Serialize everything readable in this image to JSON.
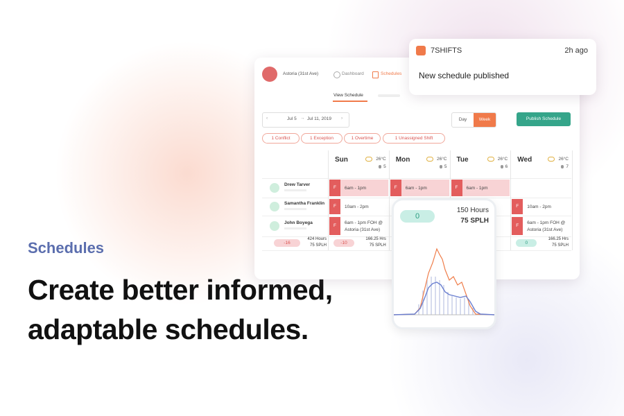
{
  "hero": {
    "eyebrow": "Schedules",
    "headline": "Create better informed, adaptable schedules."
  },
  "notification": {
    "brand": "7SHIFTS",
    "time": "2h ago",
    "message": "New schedule published"
  },
  "app": {
    "location": "Astoria (31st Ave)",
    "nav": [
      "Dashboard",
      "Schedules"
    ],
    "tab": "View Schedule",
    "date_start": "Jul 5",
    "date_end": "Jul 11, 2019",
    "view_toggle": [
      "Day",
      "Week"
    ],
    "publish": "Publish Schedule",
    "alerts": [
      "1 Conflict",
      "1 Exception",
      "1 Overtime",
      "1 Unassigned Shift"
    ],
    "days": [
      {
        "name": "Sun",
        "temp": "26°C",
        "staff": 5
      },
      {
        "name": "Mon",
        "temp": "26°C",
        "staff": 5
      },
      {
        "name": "Tue",
        "temp": "26°C",
        "staff": 6
      },
      {
        "name": "Wed",
        "temp": "26°C",
        "staff": 7
      }
    ],
    "employees": [
      {
        "name": "Drew Tarver",
        "shifts": [
          {
            "badge": "F",
            "time": "6am - 1pm"
          },
          {
            "badge": "F",
            "time": "6am - 1pm"
          },
          {
            "badge": "F",
            "time": "6am - 1pm"
          },
          null
        ]
      },
      {
        "name": "Samantha Franklin",
        "shifts": [
          {
            "badge": "F",
            "time": "10am - 2pm"
          },
          null,
          null,
          {
            "badge": "F",
            "time": "10am - 2pm"
          }
        ]
      },
      {
        "name": "John Boyega",
        "shifts": [
          {
            "badge": "F",
            "time": "6am - 1pm FOH @ Astoria (31st Ave)"
          },
          null,
          null,
          {
            "badge": "F",
            "time": "6am - 1pm FOH @ Astoria (31st Ave)"
          }
        ]
      }
    ],
    "totals": {
      "overall": {
        "diff": -16,
        "hours": "424 Hours",
        "splh": "75 SPLH"
      },
      "days": [
        {
          "diff": -10,
          "hours": "166.25 Hrs",
          "splh": "75 SPLH"
        },
        null,
        null,
        {
          "diff": 0,
          "hours": "166.25 Hrs",
          "splh": "75 SPLH"
        }
      ]
    }
  },
  "phone": {
    "diff": 0,
    "hours": "150 Hours",
    "splh": "75 SPLH"
  }
}
